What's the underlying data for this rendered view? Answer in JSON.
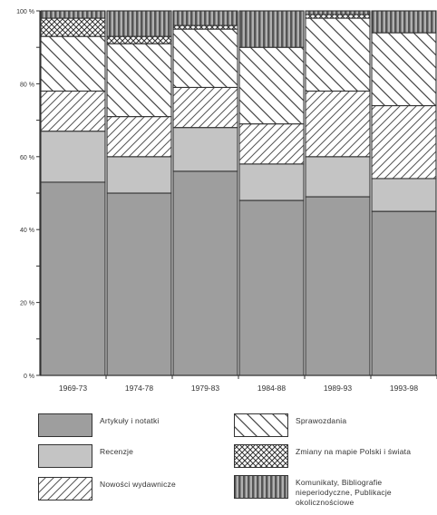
{
  "chart_data": {
    "type": "bar",
    "stacked": true,
    "percent": true,
    "categories": [
      "1969-73",
      "1974-78",
      "1979-83",
      "1984-88",
      "1989-93",
      "1993-98"
    ],
    "y_ticks": [
      "0 %",
      "20 %",
      "40 %",
      "60 %",
      "80 %",
      "100 %"
    ],
    "ylim": [
      0,
      100
    ],
    "series": [
      {
        "name": "Artykuły i notatki",
        "fill": "#9e9e9e",
        "pattern": "solid",
        "values": [
          53,
          50,
          56,
          48,
          49,
          45
        ]
      },
      {
        "name": "Recenzje",
        "fill": "#c4c4c4",
        "pattern": "solid",
        "values": [
          14,
          10,
          12,
          10,
          11,
          9
        ]
      },
      {
        "name": "Nowości wydawnicze",
        "fill": "#ffffff",
        "pattern": "hatch-light",
        "values": [
          11,
          11,
          11,
          11,
          18,
          20
        ]
      },
      {
        "name": "Sprawozdania",
        "fill": "#ffffff",
        "pattern": "hatch-sparse",
        "values": [
          15,
          20,
          16,
          21,
          20,
          20
        ]
      },
      {
        "name": "Zmiany na mapie Polski i świata",
        "fill": "#ffffff",
        "pattern": "crosshatch",
        "values": [
          5,
          2,
          1,
          0,
          1,
          0
        ]
      },
      {
        "name": "Komunikaty, Bibliografie nieperiodyczne, Publikacje okolicznościowe",
        "fill": "#8a8a8a",
        "pattern": "vertical",
        "values": [
          2,
          7,
          4,
          10,
          1,
          6
        ]
      }
    ],
    "grid": false,
    "legend_position": "bottom"
  },
  "legend": [
    {
      "label": "Artykuły i notatki",
      "pattern": "solid-dark"
    },
    {
      "label": "Sprawozdania",
      "pattern": "hatch-sparse"
    },
    {
      "label": "Recenzje",
      "pattern": "solid-light"
    },
    {
      "label": "Zmiany na mapie Polski i świata",
      "pattern": "crosshatch"
    },
    {
      "label": "Nowości wydawnicze",
      "pattern": "hatch-light"
    },
    {
      "label": "Komunikaty, Bibliografie nieperiodyczne, Publikacje okolicznościowe",
      "pattern": "vertical"
    }
  ]
}
